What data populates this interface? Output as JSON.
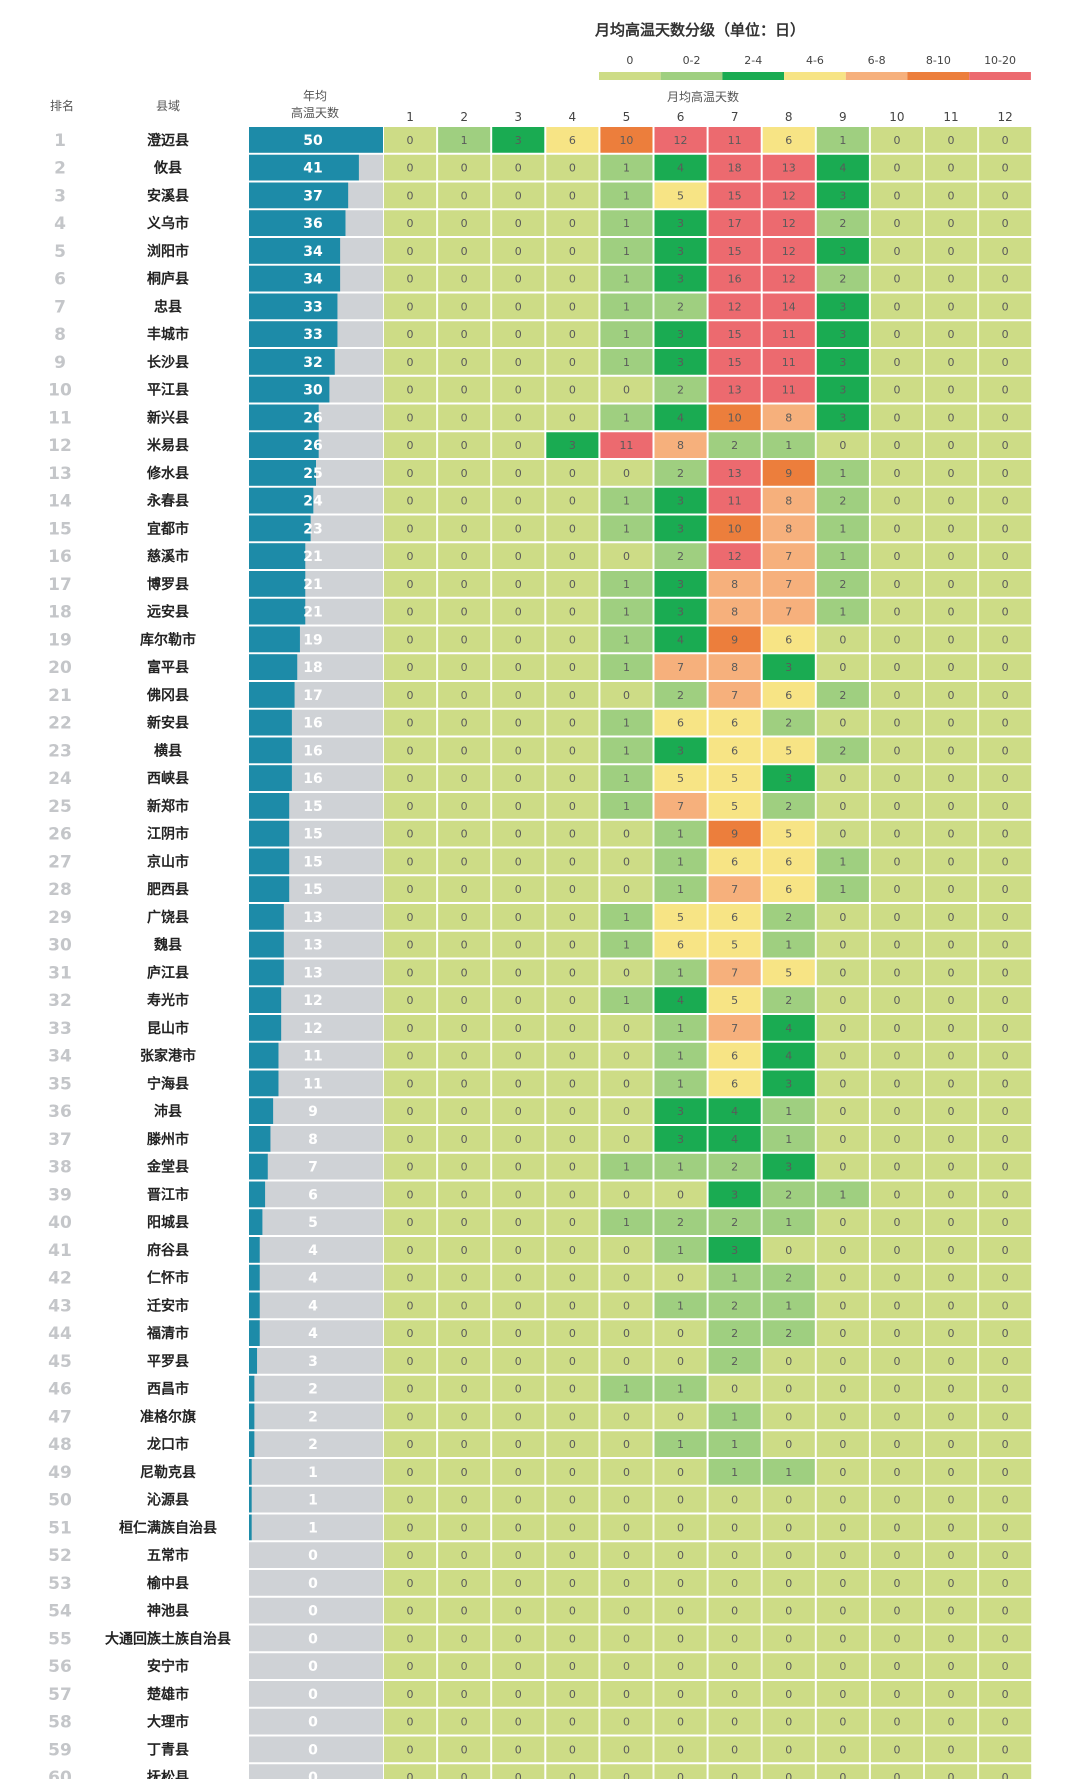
{
  "chart_data": {
    "type": "heatmap",
    "title": "月均高温天数分级（单位：日）",
    "headers": {
      "rank": "排名",
      "county": "县域",
      "annual_line1": "年均",
      "annual_line2": "高温天数",
      "monthly": "月均高温天数"
    },
    "legend": {
      "labels": [
        "0",
        "0-2",
        "2-4",
        "4-6",
        "6-8",
        "8-10",
        "10-20"
      ],
      "colors": [
        "#cddc86",
        "#9fcf80",
        "#1aab52",
        "#f7e485",
        "#f6b07c",
        "#ec7e3c",
        "#ec6a6f"
      ]
    },
    "months": [
      "1",
      "2",
      "3",
      "4",
      "5",
      "6",
      "7",
      "8",
      "9",
      "10",
      "11",
      "12"
    ],
    "annual_max": 50,
    "bar_color": "#1d8ba8",
    "bar_bg_color": "#cfd2d6",
    "rows": [
      {
        "rank": "1",
        "county": "澄迈县",
        "annual": 50,
        "months": [
          0,
          1,
          3,
          6,
          10,
          12,
          11,
          6,
          1,
          0,
          0,
          0
        ]
      },
      {
        "rank": "2",
        "county": "攸县",
        "annual": 41,
        "months": [
          0,
          0,
          0,
          0,
          1,
          4,
          18,
          13,
          4,
          0,
          0,
          0
        ]
      },
      {
        "rank": "3",
        "county": "安溪县",
        "annual": 37,
        "months": [
          0,
          0,
          0,
          0,
          1,
          5,
          15,
          12,
          3,
          0,
          0,
          0
        ]
      },
      {
        "rank": "4",
        "county": "义乌市",
        "annual": 36,
        "months": [
          0,
          0,
          0,
          0,
          1,
          3,
          17,
          12,
          2,
          0,
          0,
          0
        ]
      },
      {
        "rank": "5",
        "county": "浏阳市",
        "annual": 34,
        "months": [
          0,
          0,
          0,
          0,
          1,
          3,
          15,
          12,
          3,
          0,
          0,
          0
        ]
      },
      {
        "rank": "6",
        "county": "桐庐县",
        "annual": 34,
        "months": [
          0,
          0,
          0,
          0,
          1,
          3,
          16,
          12,
          2,
          0,
          0,
          0
        ]
      },
      {
        "rank": "7",
        "county": "忠县",
        "annual": 33,
        "months": [
          0,
          0,
          0,
          0,
          1,
          2,
          12,
          14,
          3,
          0,
          0,
          0
        ]
      },
      {
        "rank": "8",
        "county": "丰城市",
        "annual": 33,
        "months": [
          0,
          0,
          0,
          0,
          1,
          3,
          15,
          11,
          3,
          0,
          0,
          0
        ]
      },
      {
        "rank": "9",
        "county": "长沙县",
        "annual": 32,
        "months": [
          0,
          0,
          0,
          0,
          1,
          3,
          15,
          11,
          3,
          0,
          0,
          0
        ]
      },
      {
        "rank": "10",
        "county": "平江县",
        "annual": 30,
        "months": [
          0,
          0,
          0,
          0,
          0,
          2,
          13,
          11,
          3,
          0,
          0,
          0
        ]
      },
      {
        "rank": "11",
        "county": "新兴县",
        "annual": 26,
        "months": [
          0,
          0,
          0,
          0,
          1,
          4,
          10,
          8,
          3,
          0,
          0,
          0
        ]
      },
      {
        "rank": "12",
        "county": "米易县",
        "annual": 26,
        "months": [
          0,
          0,
          0,
          3,
          11,
          8,
          2,
          1,
          0,
          0,
          0,
          0
        ]
      },
      {
        "rank": "13",
        "county": "修水县",
        "annual": 25,
        "months": [
          0,
          0,
          0,
          0,
          0,
          2,
          13,
          9,
          1,
          0,
          0,
          0
        ]
      },
      {
        "rank": "14",
        "county": "永春县",
        "annual": 24,
        "months": [
          0,
          0,
          0,
          0,
          1,
          3,
          11,
          8,
          2,
          0,
          0,
          0
        ]
      },
      {
        "rank": "15",
        "county": "宜都市",
        "annual": 23,
        "months": [
          0,
          0,
          0,
          0,
          1,
          3,
          10,
          8,
          1,
          0,
          0,
          0
        ]
      },
      {
        "rank": "16",
        "county": "慈溪市",
        "annual": 21,
        "months": [
          0,
          0,
          0,
          0,
          0,
          2,
          12,
          7,
          1,
          0,
          0,
          0
        ]
      },
      {
        "rank": "17",
        "county": "博罗县",
        "annual": 21,
        "months": [
          0,
          0,
          0,
          0,
          1,
          3,
          8,
          7,
          2,
          0,
          0,
          0
        ]
      },
      {
        "rank": "18",
        "county": "远安县",
        "annual": 21,
        "months": [
          0,
          0,
          0,
          0,
          1,
          3,
          8,
          7,
          1,
          0,
          0,
          0
        ]
      },
      {
        "rank": "19",
        "county": "库尔勒市",
        "annual": 19,
        "months": [
          0,
          0,
          0,
          0,
          1,
          4,
          9,
          6,
          0,
          0,
          0,
          0
        ]
      },
      {
        "rank": "20",
        "county": "富平县",
        "annual": 18,
        "months": [
          0,
          0,
          0,
          0,
          1,
          7,
          8,
          3,
          0,
          0,
          0,
          0
        ]
      },
      {
        "rank": "21",
        "county": "佛冈县",
        "annual": 17,
        "months": [
          0,
          0,
          0,
          0,
          0,
          2,
          7,
          6,
          2,
          0,
          0,
          0
        ]
      },
      {
        "rank": "22",
        "county": "新安县",
        "annual": 16,
        "months": [
          0,
          0,
          0,
          0,
          1,
          6,
          6,
          2,
          0,
          0,
          0,
          0
        ]
      },
      {
        "rank": "23",
        "county": "横县",
        "annual": 16,
        "months": [
          0,
          0,
          0,
          0,
          1,
          3,
          6,
          5,
          2,
          0,
          0,
          0
        ]
      },
      {
        "rank": "24",
        "county": "西峡县",
        "annual": 16,
        "months": [
          0,
          0,
          0,
          0,
          1,
          5,
          5,
          3,
          0,
          0,
          0,
          0
        ]
      },
      {
        "rank": "25",
        "county": "新郑市",
        "annual": 15,
        "months": [
          0,
          0,
          0,
          0,
          1,
          7,
          5,
          2,
          0,
          0,
          0,
          0
        ]
      },
      {
        "rank": "26",
        "county": "江阴市",
        "annual": 15,
        "months": [
          0,
          0,
          0,
          0,
          0,
          1,
          9,
          5,
          0,
          0,
          0,
          0
        ]
      },
      {
        "rank": "27",
        "county": "京山市",
        "annual": 15,
        "months": [
          0,
          0,
          0,
          0,
          0,
          1,
          6,
          6,
          1,
          0,
          0,
          0
        ]
      },
      {
        "rank": "28",
        "county": "肥西县",
        "annual": 15,
        "months": [
          0,
          0,
          0,
          0,
          0,
          1,
          7,
          6,
          1,
          0,
          0,
          0
        ]
      },
      {
        "rank": "29",
        "county": "广饶县",
        "annual": 13,
        "months": [
          0,
          0,
          0,
          0,
          1,
          5,
          6,
          2,
          0,
          0,
          0,
          0
        ]
      },
      {
        "rank": "30",
        "county": "魏县",
        "annual": 13,
        "months": [
          0,
          0,
          0,
          0,
          1,
          6,
          5,
          1,
          0,
          0,
          0,
          0
        ]
      },
      {
        "rank": "31",
        "county": "庐江县",
        "annual": 13,
        "months": [
          0,
          0,
          0,
          0,
          0,
          1,
          7,
          5,
          0,
          0,
          0,
          0
        ]
      },
      {
        "rank": "32",
        "county": "寿光市",
        "annual": 12,
        "months": [
          0,
          0,
          0,
          0,
          1,
          4,
          5,
          2,
          0,
          0,
          0,
          0
        ]
      },
      {
        "rank": "33",
        "county": "昆山市",
        "annual": 12,
        "months": [
          0,
          0,
          0,
          0,
          0,
          1,
          7,
          4,
          0,
          0,
          0,
          0
        ]
      },
      {
        "rank": "34",
        "county": "张家港市",
        "annual": 11,
        "months": [
          0,
          0,
          0,
          0,
          0,
          1,
          6,
          4,
          0,
          0,
          0,
          0
        ]
      },
      {
        "rank": "35",
        "county": "宁海县",
        "annual": 11,
        "months": [
          0,
          0,
          0,
          0,
          0,
          1,
          6,
          3,
          0,
          0,
          0,
          0
        ]
      },
      {
        "rank": "36",
        "county": "沛县",
        "annual": 9,
        "months": [
          0,
          0,
          0,
          0,
          0,
          3,
          4,
          1,
          0,
          0,
          0,
          0
        ]
      },
      {
        "rank": "37",
        "county": "滕州市",
        "annual": 8,
        "months": [
          0,
          0,
          0,
          0,
          0,
          3,
          4,
          1,
          0,
          0,
          0,
          0
        ]
      },
      {
        "rank": "38",
        "county": "金堂县",
        "annual": 7,
        "months": [
          0,
          0,
          0,
          0,
          1,
          1,
          2,
          3,
          0,
          0,
          0,
          0
        ]
      },
      {
        "rank": "39",
        "county": "晋江市",
        "annual": 6,
        "months": [
          0,
          0,
          0,
          0,
          0,
          0,
          3,
          2,
          1,
          0,
          0,
          0
        ]
      },
      {
        "rank": "40",
        "county": "阳城县",
        "annual": 5,
        "months": [
          0,
          0,
          0,
          0,
          1,
          2,
          2,
          1,
          0,
          0,
          0,
          0
        ]
      },
      {
        "rank": "41",
        "county": "府谷县",
        "annual": 4,
        "months": [
          0,
          0,
          0,
          0,
          0,
          1,
          3,
          0,
          0,
          0,
          0,
          0
        ]
      },
      {
        "rank": "42",
        "county": "仁怀市",
        "annual": 4,
        "months": [
          0,
          0,
          0,
          0,
          0,
          0,
          1,
          2,
          0,
          0,
          0,
          0
        ]
      },
      {
        "rank": "43",
        "county": "迁安市",
        "annual": 4,
        "months": [
          0,
          0,
          0,
          0,
          0,
          1,
          2,
          1,
          0,
          0,
          0,
          0
        ]
      },
      {
        "rank": "44",
        "county": "福清市",
        "annual": 4,
        "months": [
          0,
          0,
          0,
          0,
          0,
          0,
          2,
          2,
          0,
          0,
          0,
          0
        ]
      },
      {
        "rank": "45",
        "county": "平罗县",
        "annual": 3,
        "months": [
          0,
          0,
          0,
          0,
          0,
          0,
          2,
          0,
          0,
          0,
          0,
          0
        ]
      },
      {
        "rank": "46",
        "county": "西昌市",
        "annual": 2,
        "months": [
          0,
          0,
          0,
          0,
          1,
          1,
          0,
          0,
          0,
          0,
          0,
          0
        ]
      },
      {
        "rank": "47",
        "county": "准格尔旗",
        "annual": 2,
        "months": [
          0,
          0,
          0,
          0,
          0,
          0,
          1,
          0,
          0,
          0,
          0,
          0
        ]
      },
      {
        "rank": "48",
        "county": "龙口市",
        "annual": 2,
        "months": [
          0,
          0,
          0,
          0,
          0,
          1,
          1,
          0,
          0,
          0,
          0,
          0
        ]
      },
      {
        "rank": "49",
        "county": "尼勒克县",
        "annual": 1,
        "months": [
          0,
          0,
          0,
          0,
          0,
          0,
          1,
          1,
          0,
          0,
          0,
          0
        ]
      },
      {
        "rank": "50",
        "county": "沁源县",
        "annual": 1,
        "months": [
          0,
          0,
          0,
          0,
          0,
          0,
          0,
          0,
          0,
          0,
          0,
          0
        ]
      },
      {
        "rank": "51",
        "county": "桓仁满族自治县",
        "annual": 1,
        "months": [
          0,
          0,
          0,
          0,
          0,
          0,
          0,
          0,
          0,
          0,
          0,
          0
        ]
      },
      {
        "rank": "52",
        "county": "五常市",
        "annual": 0,
        "months": [
          0,
          0,
          0,
          0,
          0,
          0,
          0,
          0,
          0,
          0,
          0,
          0
        ]
      },
      {
        "rank": "53",
        "county": "榆中县",
        "annual": 0,
        "months": [
          0,
          0,
          0,
          0,
          0,
          0,
          0,
          0,
          0,
          0,
          0,
          0
        ]
      },
      {
        "rank": "54",
        "county": "神池县",
        "annual": 0,
        "months": [
          0,
          0,
          0,
          0,
          0,
          0,
          0,
          0,
          0,
          0,
          0,
          0
        ]
      },
      {
        "rank": "55",
        "county": "大通回族土族自治县",
        "annual": 0,
        "months": [
          0,
          0,
          0,
          0,
          0,
          0,
          0,
          0,
          0,
          0,
          0,
          0
        ]
      },
      {
        "rank": "56",
        "county": "安宁市",
        "annual": 0,
        "months": [
          0,
          0,
          0,
          0,
          0,
          0,
          0,
          0,
          0,
          0,
          0,
          0
        ]
      },
      {
        "rank": "57",
        "county": "楚雄市",
        "annual": 0,
        "months": [
          0,
          0,
          0,
          0,
          0,
          0,
          0,
          0,
          0,
          0,
          0,
          0
        ]
      },
      {
        "rank": "58",
        "county": "大理市",
        "annual": 0,
        "months": [
          0,
          0,
          0,
          0,
          0,
          0,
          0,
          0,
          0,
          0,
          0,
          0
        ]
      },
      {
        "rank": "59",
        "county": "丁青县",
        "annual": 0,
        "months": [
          0,
          0,
          0,
          0,
          0,
          0,
          0,
          0,
          0,
          0,
          0,
          0
        ]
      },
      {
        "rank": "60",
        "county": "抚松县",
        "annual": 0,
        "months": [
          0,
          0,
          0,
          0,
          0,
          0,
          0,
          0,
          0,
          0,
          0,
          0
        ]
      }
    ]
  }
}
